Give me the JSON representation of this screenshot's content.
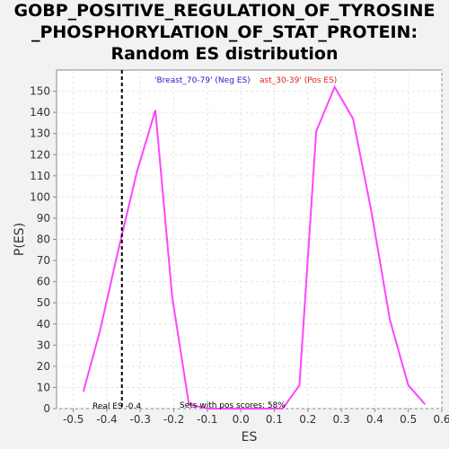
{
  "chart_data": {
    "type": "line",
    "title_lines": [
      "GOBP_POSITIVE_REGULATION_OF_TYROSINE",
      "_PHOSPHORYLATION_OF_STAT_PROTEIN:",
      "Random ES distribution"
    ],
    "xlabel": "ES",
    "ylabel": "P(ES)",
    "xlim": [
      -0.55,
      0.6
    ],
    "ylim": [
      0,
      160
    ],
    "x_ticks": [
      -0.5,
      -0.4,
      -0.3,
      -0.2,
      -0.1,
      0.0,
      0.1,
      0.2,
      0.3,
      0.4,
      0.5,
      0.6
    ],
    "x_tick_labels": [
      "-0.5",
      "-0.4",
      "-0.3",
      "-0.2",
      "-0.1",
      "0.0",
      "0.1",
      "0.2",
      "0.3",
      "0.4",
      "0.5",
      "0.6"
    ],
    "y_ticks": [
      0,
      10,
      20,
      30,
      40,
      50,
      60,
      70,
      80,
      90,
      100,
      110,
      120,
      130,
      140,
      150
    ],
    "grid": true,
    "series": [
      {
        "color": "#ff44ff",
        "x": [
          -0.47,
          -0.42,
          -0.37,
          -0.31,
          -0.255,
          -0.205,
          -0.155,
          -0.1,
          0.0,
          0.125,
          0.175,
          0.225,
          0.28,
          0.335,
          0.39,
          0.445,
          0.5,
          0.55
        ],
        "y": [
          8,
          37,
          72,
          112,
          141,
          53,
          2,
          0,
          0,
          0,
          11,
          131,
          152,
          137,
          93,
          42,
          11,
          2
        ]
      }
    ],
    "legend_neg": {
      "text": "'Breast_70-79' (Neg ES)",
      "color": "#2222cc"
    },
    "legend_pos": {
      "text": "ast_30-39' (Pos ES)",
      "color": "#dd2222"
    },
    "real_es": {
      "value": -0.355,
      "label": "Real ES -0.4"
    },
    "annotation_pos_scores": "Sets with pos scores: 58%",
    "colors": {
      "plot_bg": "#ffffff",
      "page_bg": "#f2f2f2",
      "grid": "#e6e6e6",
      "axis": "#888888"
    }
  }
}
